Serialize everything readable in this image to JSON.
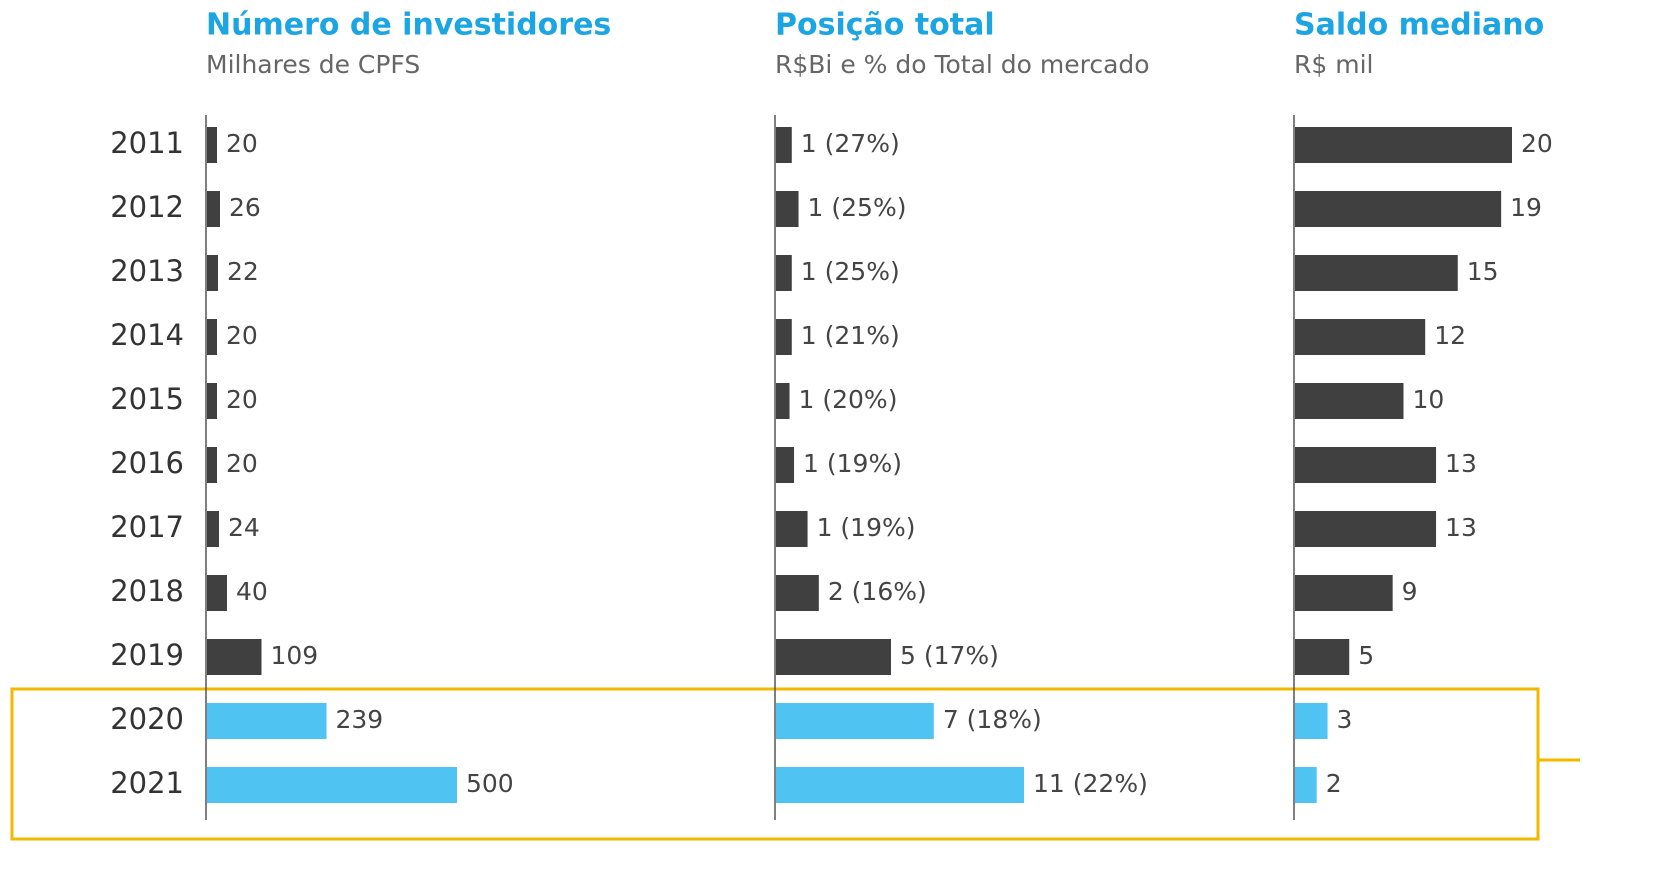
{
  "chart_data": [
    {
      "type": "bar",
      "title": "Número de investidores",
      "subtitle": "Milhares de CPFS",
      "categories": [
        "2011",
        "2012",
        "2013",
        "2014",
        "2015",
        "2016",
        "2017",
        "2018",
        "2019",
        "2020",
        "2021"
      ],
      "values": [
        20,
        26,
        22,
        20,
        20,
        20,
        24,
        40,
        109,
        239,
        500
      ],
      "colors": [
        "#404040",
        "#404040",
        "#404040",
        "#404040",
        "#404040",
        "#404040",
        "#404040",
        "#404040",
        "#404040",
        "#4fc3f2",
        "#4fc3f2"
      ],
      "xlim": [
        0,
        500
      ]
    },
    {
      "type": "bar",
      "title": "Posição total",
      "subtitle": "R$Bi e % do Total do mercado",
      "values": [
        0.7,
        1.0,
        0.7,
        0.7,
        0.6,
        0.8,
        1.4,
        1.9,
        5.1,
        7.0,
        11
      ],
      "value_labels": [
        "1 (27%)",
        "1 (25%)",
        "1 (25%)",
        "1 (21%)",
        "1 (20%)",
        "1 (19%)",
        "1 (19%)",
        "2 (16%)",
        "5 (17%)",
        "7 (18%)",
        "11 (22%)"
      ],
      "colors": [
        "#404040",
        "#404040",
        "#404040",
        "#404040",
        "#404040",
        "#404040",
        "#404040",
        "#404040",
        "#404040",
        "#4fc3f2",
        "#4fc3f2"
      ],
      "xlim": [
        0,
        11
      ]
    },
    {
      "type": "bar",
      "title": "Saldo mediano",
      "subtitle": "R$ mil",
      "values": [
        20,
        19,
        15,
        12,
        10,
        13,
        13,
        9,
        5,
        3,
        2
      ],
      "colors": [
        "#404040",
        "#404040",
        "#404040",
        "#404040",
        "#404040",
        "#404040",
        "#404040",
        "#404040",
        "#404040",
        "#4fc3f2",
        "#4fc3f2"
      ],
      "xlim": [
        0,
        20
      ]
    }
  ]
}
